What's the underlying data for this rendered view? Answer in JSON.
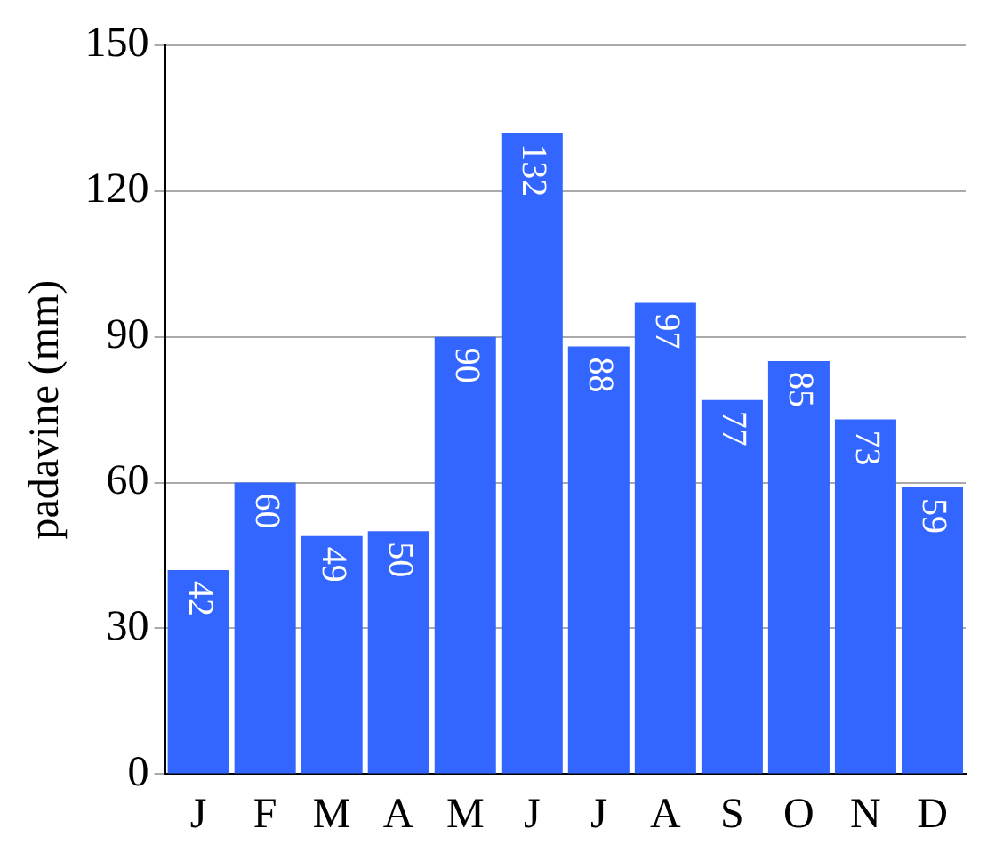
{
  "chart_data": {
    "type": "bar",
    "ylabel": "padavine (mm)",
    "categories": [
      "J",
      "F",
      "M",
      "A",
      "M",
      "J",
      "J",
      "A",
      "S",
      "O",
      "N",
      "D"
    ],
    "values": [
      42,
      60,
      49,
      50,
      90,
      132,
      88,
      97,
      77,
      85,
      73,
      59
    ],
    "color": "#3366ff",
    "ylim": [
      0,
      150
    ],
    "yticks": [
      0,
      30,
      60,
      90,
      120,
      150
    ],
    "grid": "y",
    "data_labels": true,
    "legend": false
  }
}
